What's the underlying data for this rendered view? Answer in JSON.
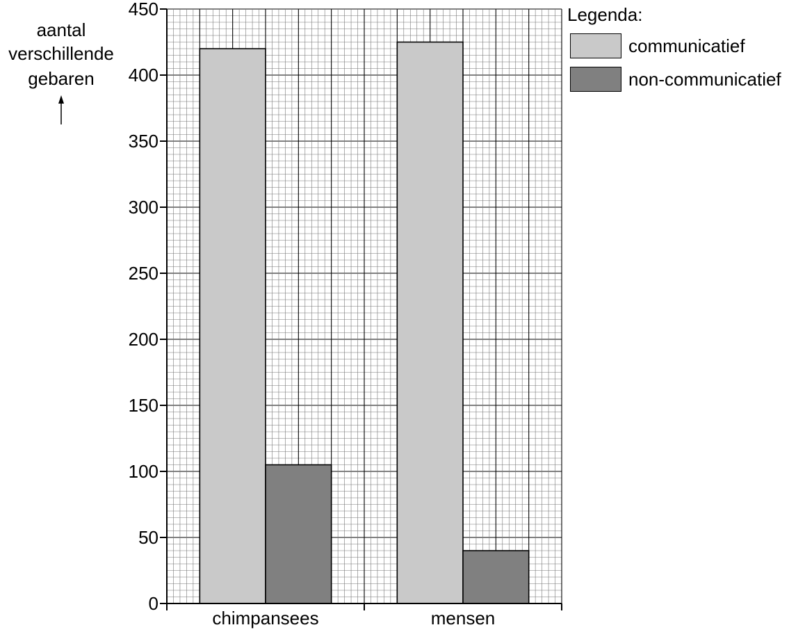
{
  "chart_data": {
    "type": "bar",
    "ylabel_lines": [
      "aantal",
      "verschillende",
      "gebaren"
    ],
    "categories": [
      "chimpansees",
      "mensen"
    ],
    "series": [
      {
        "name": "communicatief",
        "color": "#c9c9c9",
        "values": [
          420,
          425
        ]
      },
      {
        "name": "non-communicatief",
        "color": "#808080",
        "values": [
          105,
          40
        ]
      }
    ],
    "ylim": [
      0,
      450
    ],
    "yticks": [
      0,
      50,
      100,
      150,
      200,
      250,
      300,
      350,
      400,
      450
    ],
    "grid": true,
    "legend_title": "Legenda:",
    "legend_position": "top-right"
  }
}
